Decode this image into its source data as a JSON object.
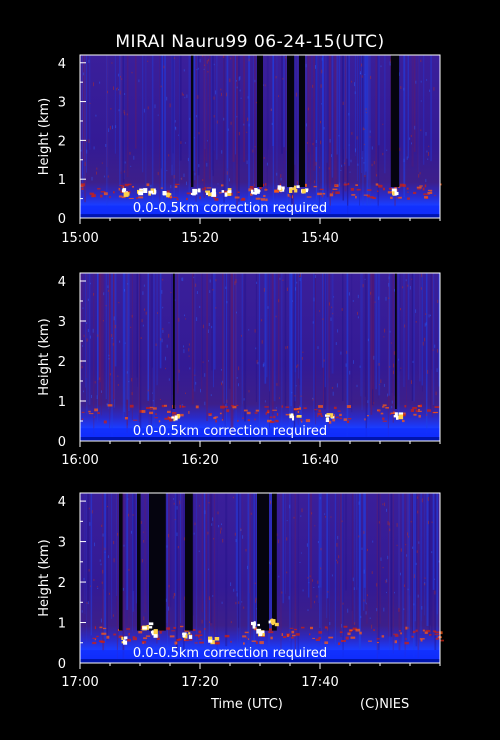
{
  "title": "MIRAI Nauru99 06-24-15(UTC)",
  "xlabel": "Time (UTC)",
  "credit": "(C)NIES",
  "colors": {
    "background": "#000000",
    "text": "#ffffff",
    "axis": "#ffffff"
  },
  "chart_data": [
    {
      "type": "heatmap",
      "ylabel": "Height (km)",
      "ylim": [
        0,
        4.2
      ],
      "y_ticks": [
        "0",
        "1",
        "2",
        "3",
        "4"
      ],
      "xlim_minutes": [
        0,
        60
      ],
      "x_ticks": [
        "15:00",
        "15:20",
        "15:40"
      ],
      "note": "0.0-0.5km correction required",
      "cloud_echoes": [
        {
          "t": 7,
          "h": 0.72
        },
        {
          "t": 10,
          "h": 0.74
        },
        {
          "t": 11.5,
          "h": 0.7
        },
        {
          "t": 14,
          "h": 0.68
        },
        {
          "t": 19,
          "h": 0.7
        },
        {
          "t": 21.5,
          "h": 0.7
        },
        {
          "t": 24,
          "h": 0.72
        },
        {
          "t": 29,
          "h": 0.72
        },
        {
          "t": 33,
          "h": 0.8
        },
        {
          "t": 35.5,
          "h": 0.78
        },
        {
          "t": 37.5,
          "h": 0.74
        },
        {
          "t": 52,
          "h": 0.72
        }
      ],
      "signal_gaps": [
        {
          "t": 18.5,
          "w": 0.4
        },
        {
          "t": 29.5,
          "w": 1
        },
        {
          "t": 34.5,
          "w": 1.2
        },
        {
          "t": 36.5,
          "w": 1
        },
        {
          "t": 51.8,
          "w": 1.4
        }
      ]
    },
    {
      "type": "heatmap",
      "ylabel": "Height (km)",
      "ylim": [
        0,
        4.2
      ],
      "y_ticks": [
        "0",
        "1",
        "2",
        "3",
        "4"
      ],
      "xlim_minutes": [
        0,
        60
      ],
      "x_ticks": [
        "16:00",
        "16:20",
        "16:40"
      ],
      "note": "0.0-0.5km correction required",
      "cloud_echoes": [
        {
          "t": 15.5,
          "h": 0.62
        },
        {
          "t": 35.5,
          "h": 0.66
        },
        {
          "t": 41.5,
          "h": 0.64
        },
        {
          "t": 52.5,
          "h": 0.66
        }
      ],
      "signal_gaps": [
        {
          "t": 15.5,
          "w": 0.3
        },
        {
          "t": 52.5,
          "w": 0.3
        }
      ]
    },
    {
      "type": "heatmap",
      "ylabel": "Height (km)",
      "ylim": [
        0,
        4.2
      ],
      "y_ticks": [
        "0",
        "1",
        "2",
        "3",
        "4"
      ],
      "xlim_minutes": [
        0,
        60
      ],
      "x_ticks": [
        "17:00",
        "17:20",
        "17:40"
      ],
      "note": "0.0-0.5km correction required",
      "cloud_echoes": [
        {
          "t": 7,
          "h": 0.6
        },
        {
          "t": 11,
          "h": 0.95
        },
        {
          "t": 12,
          "h": 0.8
        },
        {
          "t": 17.5,
          "h": 0.75
        },
        {
          "t": 22,
          "h": 0.6
        },
        {
          "t": 29,
          "h": 1.0
        },
        {
          "t": 30,
          "h": 0.8
        },
        {
          "t": 32,
          "h": 1.05
        }
      ],
      "signal_gaps": [
        {
          "t": 6.5,
          "w": 0.6
        },
        {
          "t": 9.5,
          "w": 0.6
        },
        {
          "t": 11.5,
          "w": 2.8
        },
        {
          "t": 17.5,
          "w": 1.3
        },
        {
          "t": 29.5,
          "w": 2
        },
        {
          "t": 32,
          "w": 0.8
        }
      ]
    }
  ]
}
